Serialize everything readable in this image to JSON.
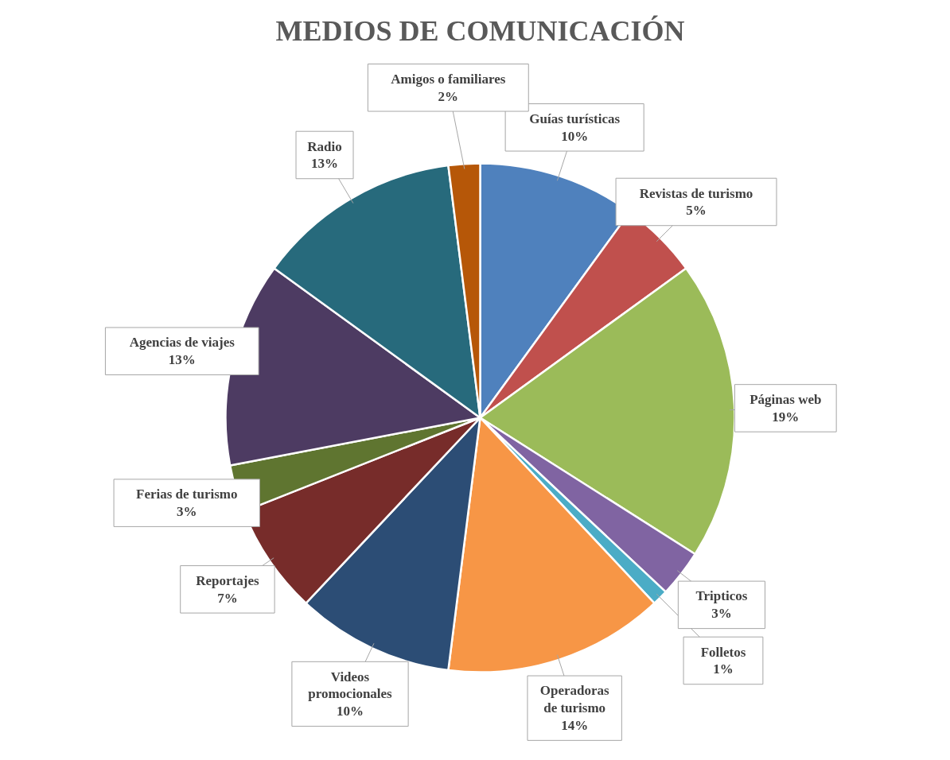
{
  "chart_data": {
    "type": "pie",
    "title": "MEDIOS DE COMUNICACIÓN",
    "categories": [
      "Guías turísticas",
      "Revistas de turismo",
      "Páginas web",
      "Tripticos",
      "Folletos",
      "Operadoras de turismo",
      "Videos promocionales",
      "Reportajes",
      "Ferias de turismo",
      "Agencias de viajes",
      "Radio",
      "Amigos o familiares"
    ],
    "values": [
      10,
      5,
      19,
      3,
      1,
      14,
      10,
      7,
      3,
      13,
      13,
      2
    ],
    "colors": [
      "#4f81bd",
      "#c0504d",
      "#9bbb59",
      "#8064a2",
      "#4bacc6",
      "#f79646",
      "#2c4d75",
      "#772c2a",
      "#5f7530",
      "#4d3b62",
      "#276a7c",
      "#b65708"
    ],
    "value_labels": [
      "10%",
      "5%",
      "19%",
      "3%",
      "1%",
      "14%",
      "10%",
      "7%",
      "3%",
      "13%",
      "13%",
      "2%"
    ]
  }
}
